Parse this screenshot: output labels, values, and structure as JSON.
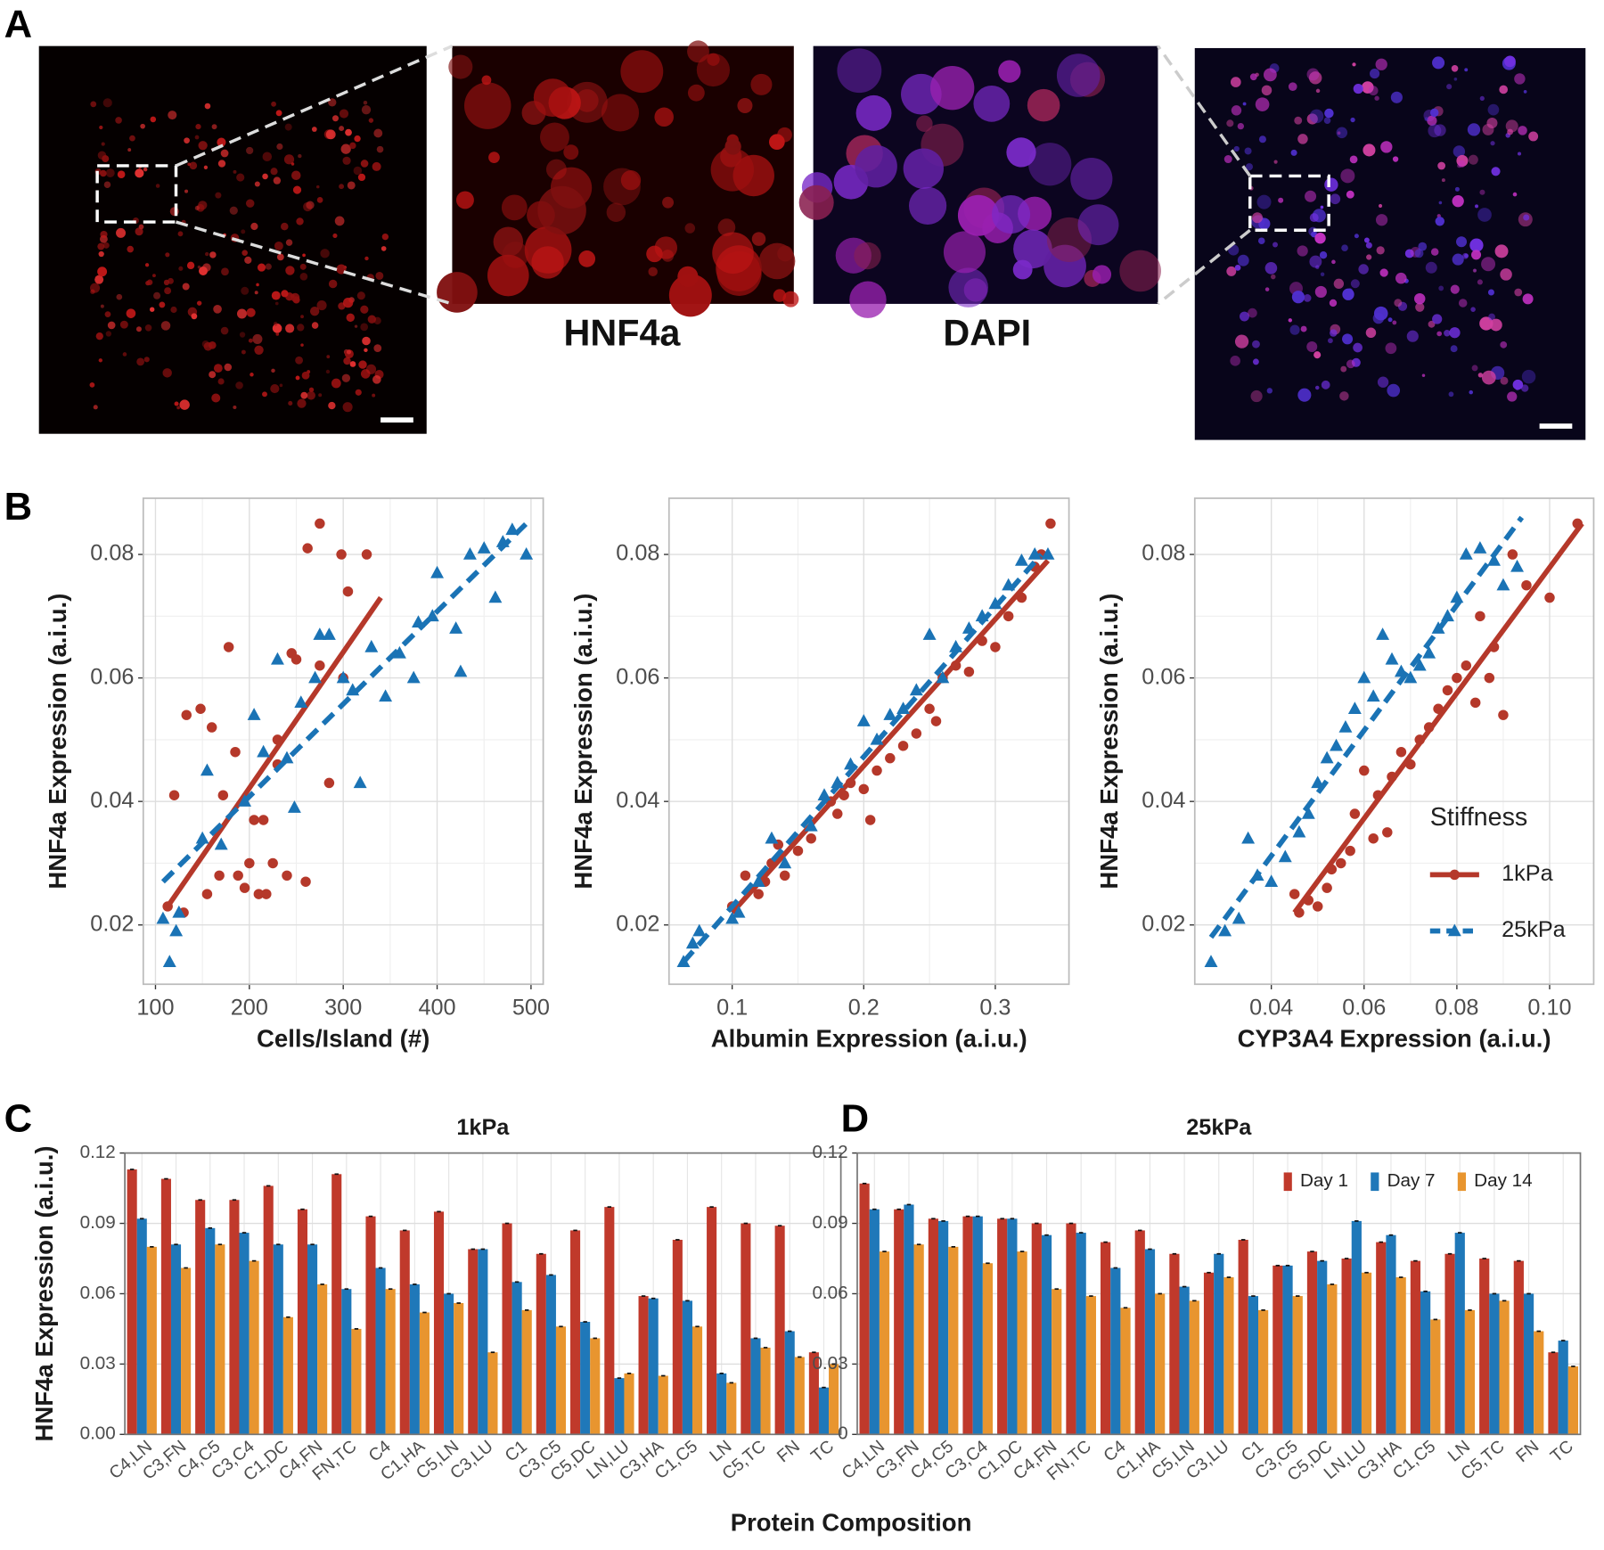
{
  "figure": {
    "panel_labels": [
      "A",
      "B",
      "C",
      "D"
    ],
    "image_captions": [
      "HNF4a",
      "DAPI"
    ]
  },
  "chart_data": [
    {
      "type": "scatter",
      "xlabel": "Cells/Island (#)",
      "ylabel": "HNF4a Expression (a.i.u.)",
      "xlim": [
        87,
        513
      ],
      "ylim": [
        0.0104,
        0.0891
      ],
      "xticks": [
        100,
        200,
        300,
        400,
        500
      ],
      "yticks": [
        0.02,
        0.04,
        0.06,
        0.08
      ],
      "grid": true,
      "series": [
        {
          "color": "#b5382a",
          "marker": "circle",
          "x": [
            113,
            120,
            130,
            133,
            148,
            155,
            160,
            168,
            172,
            178,
            185,
            188,
            195,
            200,
            205,
            210,
            215,
            218,
            225,
            230,
            240,
            245,
            250,
            260,
            262,
            275,
            285,
            298,
            305,
            325,
            300,
            230,
            275
          ],
          "y": [
            0.023,
            0.041,
            0.022,
            0.054,
            0.055,
            0.025,
            0.052,
            0.028,
            0.041,
            0.065,
            0.048,
            0.028,
            0.026,
            0.03,
            0.037,
            0.025,
            0.037,
            0.025,
            0.03,
            0.05,
            0.028,
            0.064,
            0.063,
            0.027,
            0.081,
            0.085,
            0.043,
            0.08,
            0.074,
            0.08,
            0.06,
            0.046,
            0.062
          ],
          "fit": {
            "x": [
              113,
              340
            ],
            "y": [
              0.023,
              0.073
            ],
            "style": "solid"
          }
        },
        {
          "color": "#1a73b5",
          "marker": "triangle",
          "x": [
            108,
            115,
            122,
            125,
            150,
            155,
            170,
            195,
            205,
            215,
            230,
            240,
            248,
            255,
            270,
            275,
            285,
            300,
            310,
            318,
            330,
            345,
            360,
            375,
            380,
            395,
            400,
            420,
            425,
            435,
            450,
            462,
            470,
            480,
            495
          ],
          "y": [
            0.021,
            0.014,
            0.019,
            0.022,
            0.034,
            0.045,
            0.033,
            0.04,
            0.054,
            0.048,
            0.063,
            0.047,
            0.039,
            0.056,
            0.06,
            0.067,
            0.067,
            0.06,
            0.058,
            0.043,
            0.065,
            0.057,
            0.064,
            0.06,
            0.069,
            0.07,
            0.077,
            0.068,
            0.061,
            0.08,
            0.081,
            0.073,
            0.082,
            0.084,
            0.08
          ],
          "fit": {
            "x": [
              108,
              495
            ],
            "y": [
              0.027,
              0.085
            ],
            "style": "dashed"
          }
        }
      ]
    },
    {
      "type": "scatter",
      "xlabel": "Albumin Expression (a.i.u.)",
      "ylabel": "HNF4a Expression (a.i.u.)",
      "xlim": [
        0.052,
        0.356
      ],
      "ylim": [
        0.0104,
        0.0891
      ],
      "xticks": [
        0.1,
        0.2,
        0.3
      ],
      "yticks": [
        0.02,
        0.04,
        0.06,
        0.08
      ],
      "grid": true,
      "series": [
        {
          "color": "#b5382a",
          "marker": "circle",
          "x": [
            0.1,
            0.11,
            0.12,
            0.125,
            0.13,
            0.135,
            0.14,
            0.15,
            0.16,
            0.175,
            0.18,
            0.185,
            0.19,
            0.2,
            0.205,
            0.21,
            0.22,
            0.23,
            0.24,
            0.25,
            0.255,
            0.26,
            0.27,
            0.28,
            0.29,
            0.3,
            0.31,
            0.32,
            0.33,
            0.335,
            0.342
          ],
          "y": [
            0.023,
            0.028,
            0.025,
            0.027,
            0.03,
            0.033,
            0.028,
            0.032,
            0.034,
            0.04,
            0.038,
            0.041,
            0.043,
            0.042,
            0.037,
            0.045,
            0.047,
            0.049,
            0.051,
            0.055,
            0.053,
            0.06,
            0.062,
            0.061,
            0.066,
            0.065,
            0.07,
            0.073,
            0.078,
            0.08,
            0.085
          ],
          "fit": {
            "x": [
              0.1,
              0.34
            ],
            "y": [
              0.022,
              0.079
            ],
            "style": "solid"
          }
        },
        {
          "color": "#1a73b5",
          "marker": "triangle",
          "x": [
            0.063,
            0.07,
            0.075,
            0.1,
            0.105,
            0.12,
            0.13,
            0.14,
            0.16,
            0.17,
            0.18,
            0.19,
            0.2,
            0.21,
            0.22,
            0.23,
            0.24,
            0.25,
            0.26,
            0.27,
            0.28,
            0.29,
            0.3,
            0.31,
            0.32,
            0.33,
            0.34
          ],
          "y": [
            0.014,
            0.017,
            0.019,
            0.021,
            0.022,
            0.027,
            0.034,
            0.03,
            0.036,
            0.041,
            0.043,
            0.046,
            0.053,
            0.05,
            0.054,
            0.055,
            0.058,
            0.067,
            0.06,
            0.065,
            0.068,
            0.07,
            0.072,
            0.075,
            0.079,
            0.08,
            0.08
          ],
          "fit": {
            "x": [
              0.063,
              0.335
            ],
            "y": [
              0.014,
              0.08
            ],
            "style": "dashed"
          }
        }
      ]
    },
    {
      "type": "scatter",
      "xlabel": "CYP3A4 Expression (a.i.u.)",
      "ylabel": "HNF4a Expression (a.i.u.)",
      "xlim": [
        0.0235,
        0.1095
      ],
      "ylim": [
        0.0104,
        0.0891
      ],
      "xticks": [
        0.04,
        0.06,
        0.08,
        {
          "value": 0.1,
          "label": "0.10"
        }
      ],
      "yticks": [
        0.02,
        0.04,
        0.06,
        0.08
      ],
      "grid": true,
      "legend": {
        "title": "Stiffness",
        "position": "right"
      },
      "series": [
        {
          "name": "1kPa",
          "color": "#b5382a",
          "marker": "circle",
          "x": [
            0.045,
            0.046,
            0.048,
            0.05,
            0.052,
            0.053,
            0.055,
            0.057,
            0.058,
            0.06,
            0.062,
            0.063,
            0.065,
            0.066,
            0.068,
            0.07,
            0.072,
            0.074,
            0.076,
            0.078,
            0.08,
            0.082,
            0.084,
            0.085,
            0.087,
            0.088,
            0.09,
            0.092,
            0.095,
            0.1,
            0.106
          ],
          "y": [
            0.025,
            0.022,
            0.024,
            0.023,
            0.026,
            0.029,
            0.03,
            0.032,
            0.038,
            0.045,
            0.034,
            0.041,
            0.035,
            0.044,
            0.048,
            0.046,
            0.05,
            0.052,
            0.055,
            0.058,
            0.06,
            0.062,
            0.056,
            0.07,
            0.06,
            0.065,
            0.054,
            0.08,
            0.075,
            0.073,
            0.085
          ],
          "fit": {
            "x": [
              0.045,
              0.107
            ],
            "y": [
              0.022,
              0.085
            ],
            "style": "solid"
          }
        },
        {
          "name": "25kPa",
          "color": "#1a73b5",
          "marker": "triangle",
          "x": [
            0.027,
            0.03,
            0.033,
            0.035,
            0.037,
            0.04,
            0.043,
            0.046,
            0.048,
            0.05,
            0.052,
            0.054,
            0.056,
            0.058,
            0.06,
            0.062,
            0.064,
            0.066,
            0.068,
            0.07,
            0.072,
            0.074,
            0.076,
            0.078,
            0.08,
            0.082,
            0.085,
            0.088,
            0.09,
            0.093
          ],
          "y": [
            0.014,
            0.019,
            0.021,
            0.034,
            0.028,
            0.027,
            0.031,
            0.035,
            0.038,
            0.043,
            0.047,
            0.049,
            0.052,
            0.055,
            0.06,
            0.057,
            0.067,
            0.063,
            0.061,
            0.06,
            0.062,
            0.064,
            0.068,
            0.07,
            0.073,
            0.08,
            0.081,
            0.079,
            0.075,
            0.078
          ],
          "fit": {
            "x": [
              0.027,
              0.094
            ],
            "y": [
              0.018,
              0.086
            ],
            "style": "dashed"
          }
        }
      ]
    },
    {
      "type": "bar",
      "title": "1kPa",
      "ylabel": "HNF4a Expression (a.i.u.)",
      "xlabel": "Protein Composition",
      "categories": [
        "C4,LN",
        "C3,FN",
        "C4,C5",
        "C3,C4",
        "C1,DC",
        "C4,FN",
        "FN,TC",
        "C4",
        "C1,HA",
        "C5,LN",
        "C3,LU",
        "C1",
        "C3,C5",
        "C5,DC",
        "LN,LU",
        "C3,HA",
        "C1,C5",
        "LN",
        "C5,TC",
        "FN",
        "TC"
      ],
      "ylim": [
        0,
        0.12
      ],
      "yticks": [
        {
          "value": 0,
          "label": "0.00"
        },
        0.03,
        0.06,
        0.09,
        0.12
      ],
      "grid": true,
      "series": [
        {
          "color": "#c0392b",
          "values": [
            0.113,
            0.109,
            0.1,
            0.1,
            0.106,
            0.096,
            0.111,
            0.093,
            0.087,
            0.095,
            0.079,
            0.09,
            0.077,
            0.087,
            0.097,
            0.059,
            0.083,
            0.097,
            0.09,
            0.089,
            0.035
          ]
        },
        {
          "color": "#1f78b9",
          "values": [
            0.092,
            0.081,
            0.088,
            0.086,
            0.081,
            0.081,
            0.062,
            0.071,
            0.064,
            0.06,
            0.079,
            0.065,
            0.068,
            0.048,
            0.024,
            0.058,
            0.057,
            0.026,
            0.041,
            0.044,
            0.02
          ]
        },
        {
          "color": "#e8952f",
          "values": [
            0.08,
            0.071,
            0.081,
            0.074,
            0.05,
            0.064,
            0.045,
            0.062,
            0.052,
            0.056,
            0.035,
            0.053,
            0.046,
            0.041,
            0.026,
            0.025,
            0.046,
            0.022,
            0.037,
            0.033,
            0.03
          ]
        }
      ]
    },
    {
      "type": "bar",
      "title": "25kPa",
      "categories": [
        "C4,LN",
        "C3,FN",
        "C4,C5",
        "C3,C4",
        "C1,DC",
        "C4,FN",
        "FN,TC",
        "C4",
        "C1,HA",
        "C5,LN",
        "C3,LU",
        "C1",
        "C3,C5",
        "C5,DC",
        "LN,LU",
        "C3,HA",
        "C1,C5",
        "LN",
        "C5,TC",
        "FN",
        "TC"
      ],
      "ylim": [
        0,
        0.12
      ],
      "yticks": [
        0,
        0.03,
        0.06,
        0.09,
        0.12
      ],
      "grid": true,
      "legend": "top-right",
      "series": [
        {
          "name": "Day 1",
          "color": "#c0392b",
          "values": [
            0.107,
            0.096,
            0.092,
            0.093,
            0.092,
            0.09,
            0.09,
            0.082,
            0.087,
            0.077,
            0.069,
            0.083,
            0.072,
            0.078,
            0.075,
            0.082,
            0.074,
            0.077,
            0.075,
            0.074,
            0.035
          ]
        },
        {
          "name": "Day 7",
          "color": "#1f78b9",
          "values": [
            0.096,
            0.098,
            0.091,
            0.093,
            0.092,
            0.085,
            0.086,
            0.071,
            0.079,
            0.063,
            0.077,
            0.059,
            0.072,
            0.074,
            0.091,
            0.085,
            0.061,
            0.086,
            0.06,
            0.06,
            0.04
          ]
        },
        {
          "name": "Day 14",
          "color": "#e8952f",
          "values": [
            0.078,
            0.081,
            0.08,
            0.073,
            0.078,
            0.062,
            0.059,
            0.054,
            0.06,
            0.057,
            0.067,
            0.053,
            0.059,
            0.064,
            0.069,
            0.067,
            0.049,
            0.053,
            0.057,
            0.044,
            0.029
          ]
        }
      ]
    }
  ]
}
